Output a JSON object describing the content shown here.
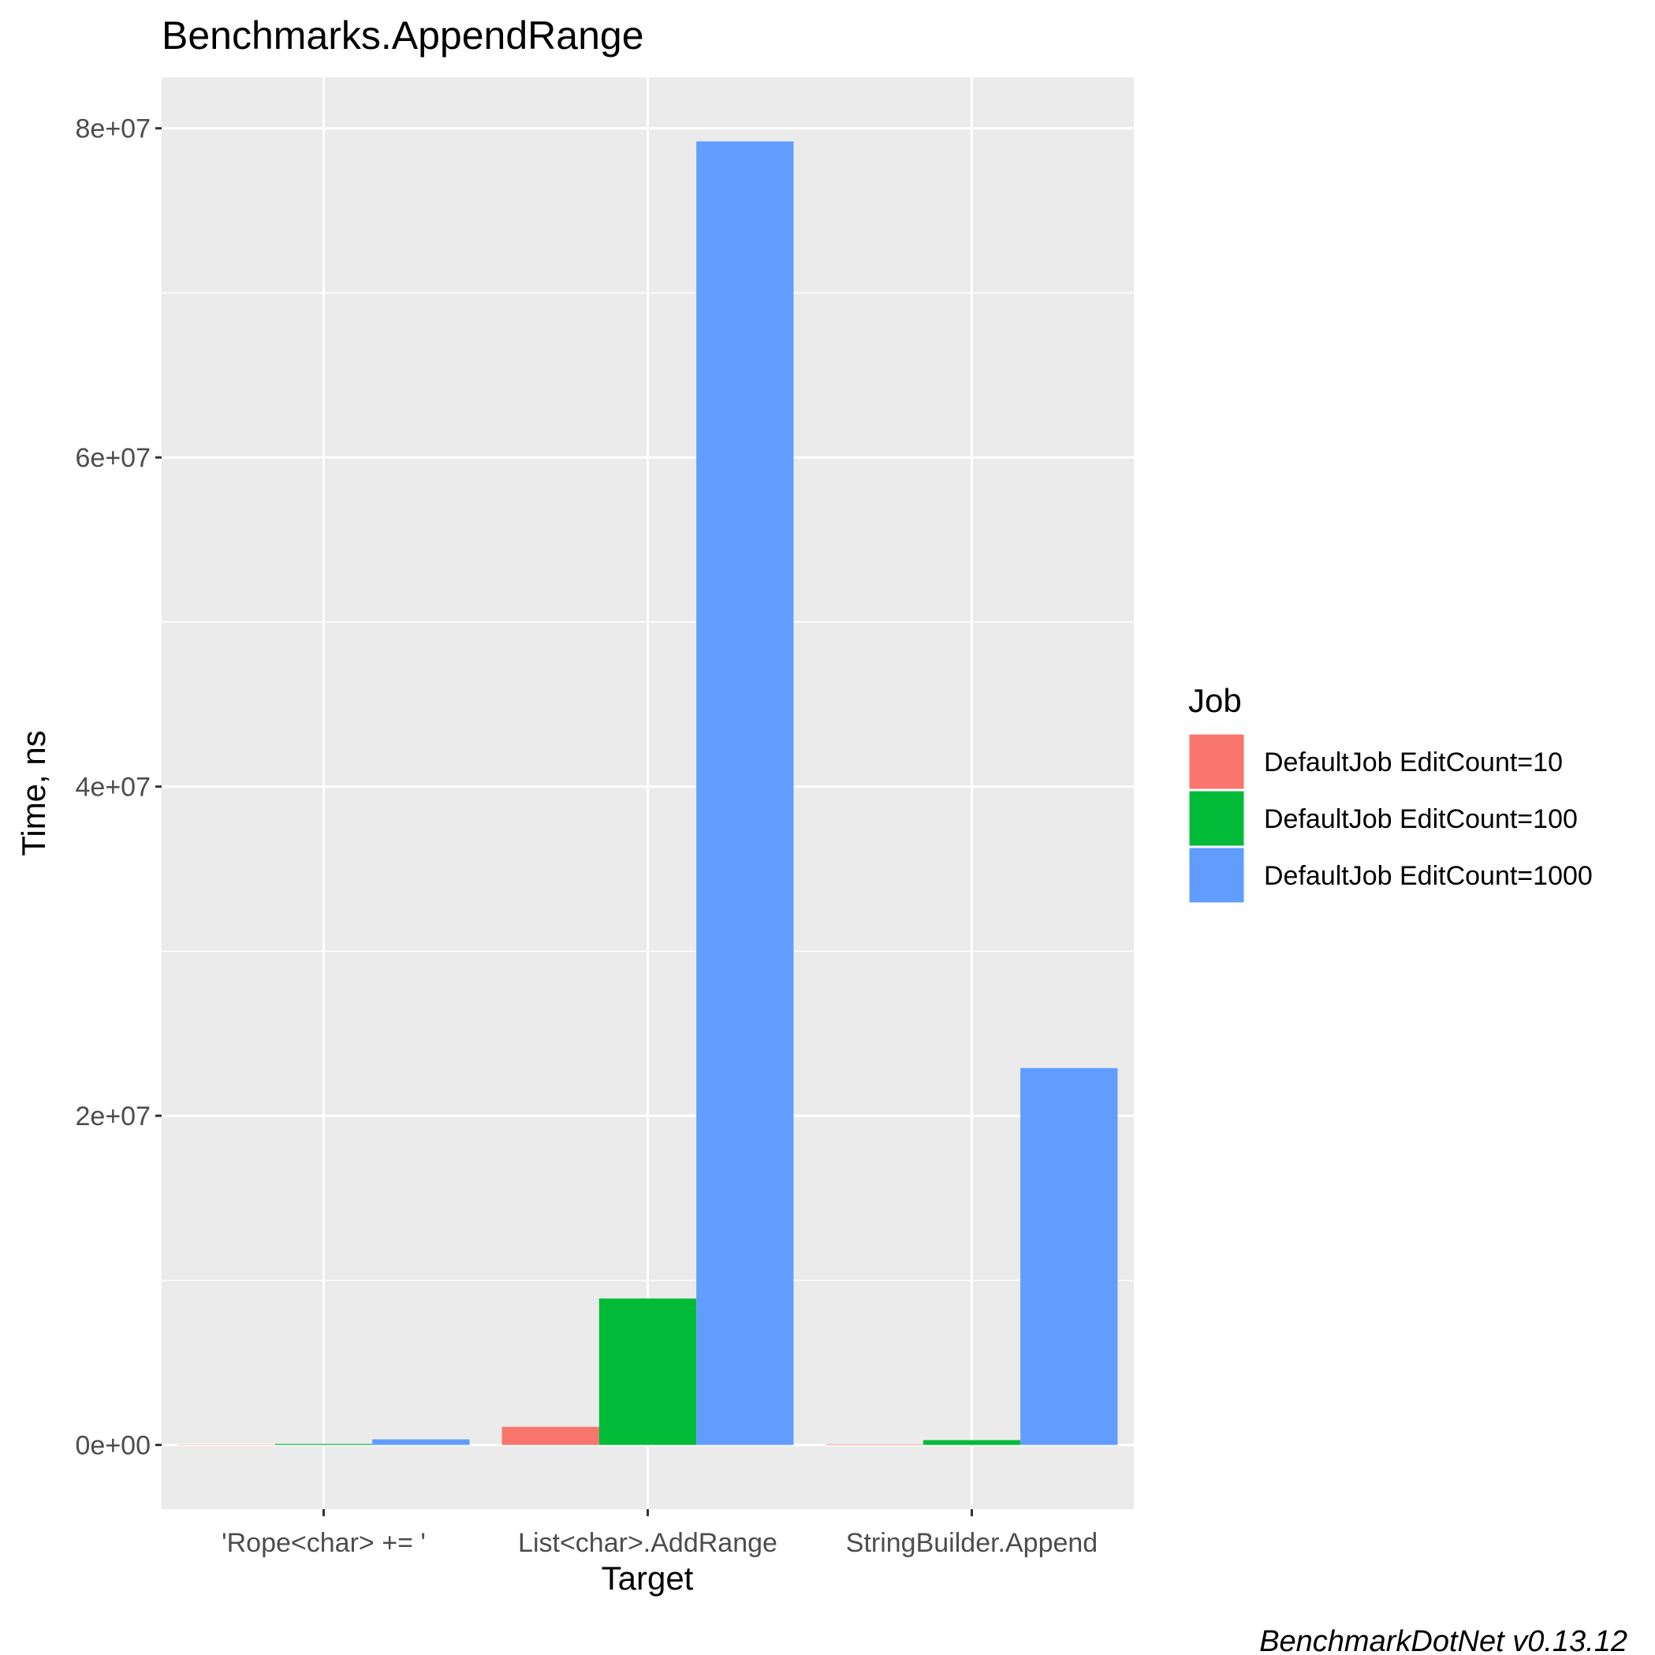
{
  "chart_data": {
    "type": "bar",
    "title": "Benchmarks.AppendRange",
    "xlabel": "Target",
    "ylabel": "Time, ns",
    "categories": [
      "'Rope<char> += '",
      "List<char>.AddRange",
      "StringBuilder.Append"
    ],
    "series": [
      {
        "name": "DefaultJob EditCount=10",
        "color": "#F8766D",
        "values": [
          20000,
          1100000,
          40000
        ]
      },
      {
        "name": "DefaultJob EditCount=100",
        "color": "#00BA38",
        "values": [
          60000,
          8900000,
          290000
        ]
      },
      {
        "name": "DefaultJob EditCount=1000",
        "color": "#619CFF",
        "values": [
          340000,
          79200000,
          22900000
        ]
      }
    ],
    "ylim": [
      -3900000,
      83100000
    ],
    "yticks": [
      0,
      20000000,
      40000000,
      60000000,
      80000000
    ],
    "ytick_labels": [
      "0e+00",
      "2e+07",
      "4e+07",
      "6e+07",
      "8e+07"
    ],
    "legend_title": "Job",
    "legend_position": "right",
    "grid": true,
    "caption": "BenchmarkDotNet v0.13.12",
    "panel_color": "#EBEBEB"
  }
}
